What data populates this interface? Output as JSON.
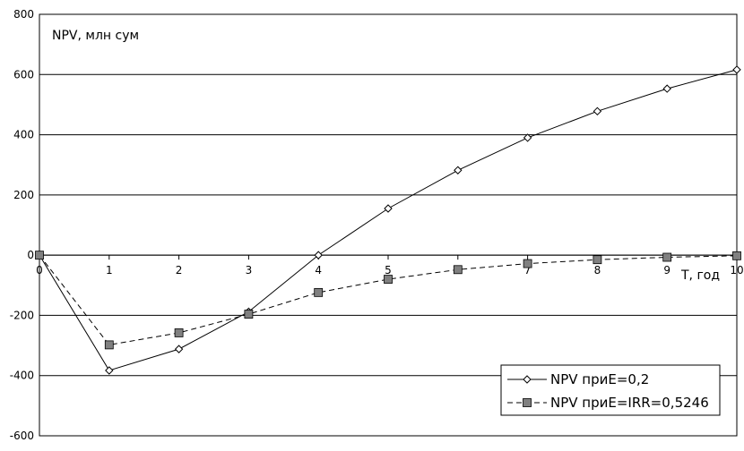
{
  "chart_data": {
    "type": "line",
    "ylabel": "NPV, млн сум",
    "xlabel": "T, год",
    "x": [
      0,
      1,
      2,
      3,
      4,
      5,
      6,
      7,
      8,
      9,
      10
    ],
    "xticks": [
      "0",
      "1",
      "2",
      "3",
      "4",
      "5",
      "6",
      "7",
      "8",
      "9",
      "10"
    ],
    "yticks": [
      "800",
      "600",
      "400",
      "200",
      "0",
      "-200",
      "-400",
      "-600"
    ],
    "ylim": [
      -600,
      800
    ],
    "xlim": [
      0,
      10
    ],
    "grid": "horizontal",
    "legend_position": "bottom-right",
    "series": [
      {
        "name": "NPV приE=0,2",
        "values": [
          0,
          -383,
          -312,
          -188,
          0,
          155,
          282,
          390,
          478,
          553,
          616
        ],
        "color": "#000000",
        "marker": "diamond",
        "line": "solid"
      },
      {
        "name": "NPV приE=IRR=0,5246",
        "values": [
          0,
          -298,
          -258,
          -196,
          -124,
          -80,
          -48,
          -28,
          -15,
          -7,
          -2
        ],
        "color": "#000000",
        "marker": "square",
        "marker_fill": "#808080",
        "line": "dashed"
      }
    ]
  }
}
